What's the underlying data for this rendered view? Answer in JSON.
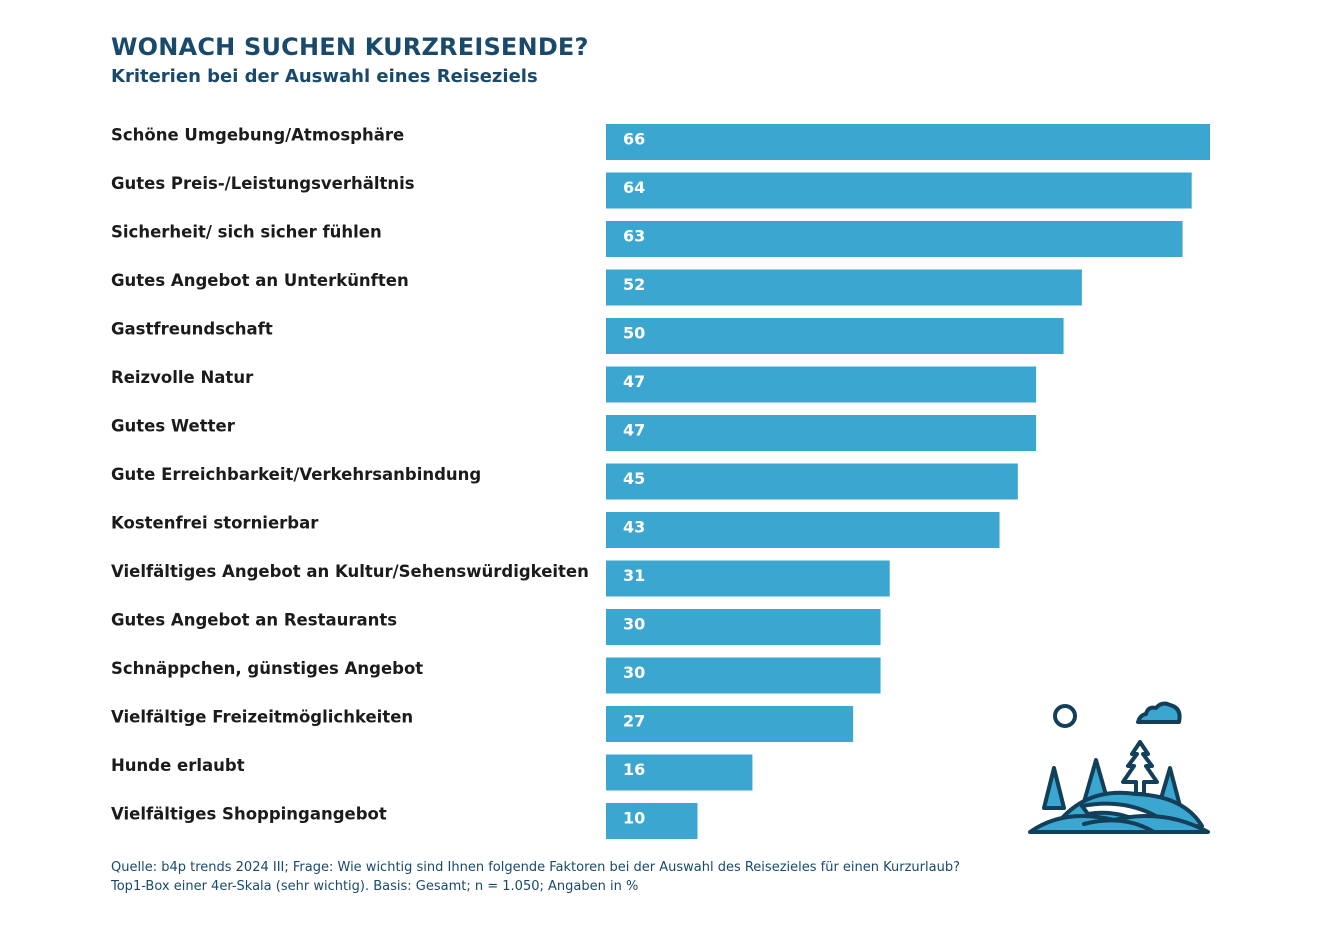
{
  "title": "WONACH SUCHEN KURZREISENDE?",
  "subtitle": "Kriterien bei der Auswahl eines Reiseziels",
  "source_lines": [
    "Quelle: b4p trends 2024 III; Frage: Wie wichtig sind Ihnen folgende Faktoren bei der Auswahl des Reisezieles für einen Kurzurlaub?",
    "Top1-Box einer 4er-Skala (sehr wichtig). Basis: Gesamt; n = 1.050; Angaben in %"
  ],
  "icon": "landscape-trees-hills-icon",
  "colors": {
    "bar": "#3ba7d0",
    "title": "#1a4a6b",
    "icon_outline": "#123f5a"
  },
  "chart_data": {
    "type": "bar",
    "orientation": "horizontal",
    "title": "WONACH SUCHEN KURZREISENDE?",
    "subtitle": "Kriterien bei der Auswahl eines Reiseziels",
    "categories": [
      "Schöne Umgebung/Atmosphäre",
      "Gutes Preis-/Leistungsverhältnis",
      "Sicherheit/ sich sicher fühlen",
      "Gutes Angebot an Unterkünften",
      "Gastfreundschaft",
      "Reizvolle Natur",
      "Gutes Wetter",
      "Gute Erreichbarkeit/Verkehrsanbindung",
      "Kostenfrei stornierbar",
      "Vielfältiges Angebot an Kultur/Sehenswürdigkeiten",
      "Gutes Angebot an Restaurants",
      "Schnäppchen, günstiges Angebot",
      "Vielfältige Freizeitmöglichkeiten",
      "Hunde erlaubt",
      "Vielfältiges Shoppingangebot"
    ],
    "values": [
      66,
      64,
      63,
      52,
      50,
      47,
      47,
      45,
      43,
      31,
      30,
      30,
      27,
      16,
      10
    ],
    "xlabel": "",
    "ylabel": "",
    "xlim": [
      0,
      66
    ],
    "grid": false,
    "data_labels": "inside-left"
  }
}
